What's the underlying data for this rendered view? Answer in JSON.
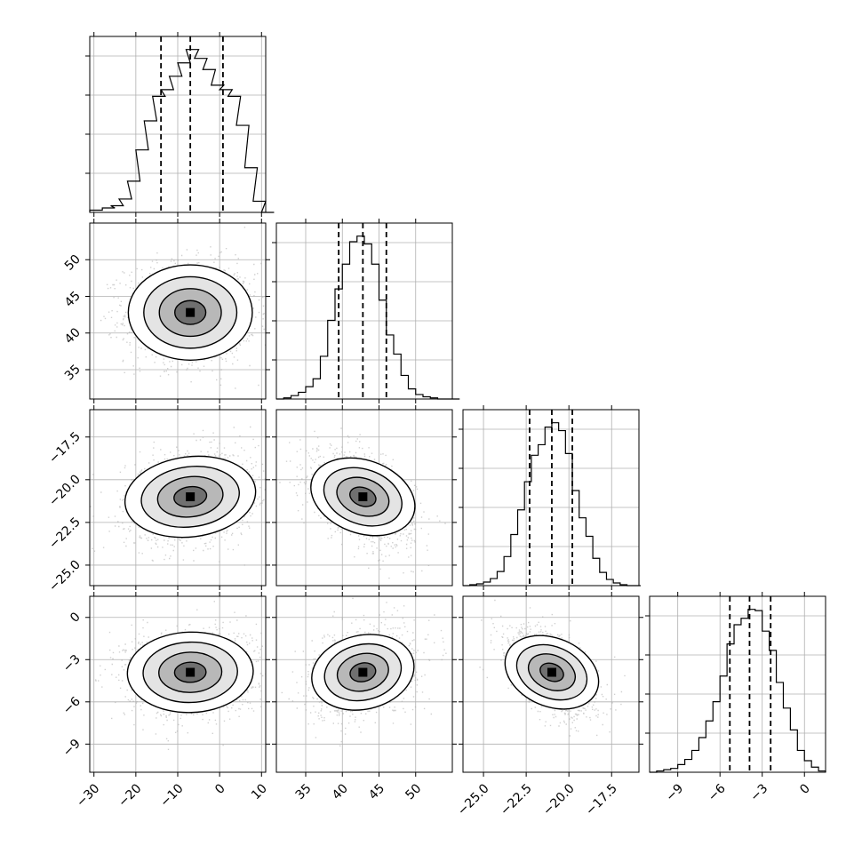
{
  "chart_data": [
    {
      "type": "corner",
      "parameters": [
        {
          "ticks": [
            -30,
            -20,
            -10,
            0,
            10
          ],
          "tick_labels": [
            "−30",
            "−20",
            "−10",
            "0",
            "10"
          ],
          "range": [
            -31,
            11
          ]
        },
        {
          "ticks": [
            35,
            40,
            45,
            50
          ],
          "tick_labels": [
            "35",
            "40",
            "45",
            "50"
          ],
          "range": [
            31,
            55
          ]
        },
        {
          "ticks": [
            -25.0,
            -22.5,
            -20.0,
            -17.5
          ],
          "tick_labels": [
            "−25.0",
            "−22.5",
            "−20.0",
            "−17.5"
          ],
          "range": [
            -26.2,
            -15.9
          ]
        },
        {
          "ticks": [
            -9,
            -6,
            -3,
            0
          ],
          "tick_labels": [
            "−9",
            "−6",
            "−3",
            "0"
          ],
          "range": [
            -11,
            1.5
          ]
        }
      ],
      "marginals": [
        {
          "quantiles": [
            -14.0,
            -7.0,
            0.8
          ],
          "x": [
            -31,
            -28,
            -26,
            -24,
            -22,
            -20,
            -18,
            -16,
            -14,
            -12,
            -10,
            -8,
            -6,
            -4,
            -2,
            0,
            2,
            4,
            6,
            8,
            10
          ],
          "y": [
            1,
            2,
            3,
            6,
            14,
            28,
            41,
            52,
            55,
            61,
            67,
            73,
            69,
            64,
            57,
            55,
            52,
            39,
            20,
            5,
            0
          ]
        },
        {
          "quantiles": [
            39.5,
            42.8,
            46.0
          ],
          "x": [
            31,
            32,
            33,
            34,
            35,
            36,
            37,
            38,
            39,
            40,
            41,
            42,
            43,
            44,
            45,
            46,
            47,
            48,
            49,
            50,
            51,
            52,
            53,
            54,
            55
          ],
          "y": [
            0,
            1,
            3,
            6,
            11,
            18,
            38,
            70,
            98,
            120,
            140,
            145,
            138,
            120,
            88,
            57,
            40,
            21,
            9,
            4,
            2,
            1,
            0,
            0,
            0
          ]
        },
        {
          "quantiles": [
            -22.3,
            -21.0,
            -19.8
          ],
          "x": [
            -26.2,
            -25.8,
            -25.4,
            -25.0,
            -24.6,
            -24.2,
            -23.8,
            -23.4,
            -23.0,
            -22.6,
            -22.2,
            -21.8,
            -21.4,
            -21.0,
            -20.6,
            -20.2,
            -19.8,
            -19.4,
            -19.0,
            -18.6,
            -18.2,
            -17.8,
            -17.4,
            -17.0,
            -16.6,
            -16.2
          ],
          "y": [
            0,
            1,
            2,
            4,
            8,
            16,
            33,
            58,
            86,
            118,
            148,
            160,
            180,
            185,
            176,
            150,
            108,
            77,
            56,
            31,
            15,
            7,
            3,
            1,
            0,
            0
          ]
        },
        {
          "quantiles": [
            -5.3,
            -3.9,
            -2.4
          ],
          "x": [
            -11,
            -10.5,
            -10,
            -9.5,
            -9,
            -8.5,
            -8,
            -7.5,
            -7,
            -6.5,
            -6,
            -5.5,
            -5,
            -4.5,
            -4,
            -3.5,
            -3,
            -2.5,
            -2,
            -1.5,
            -1,
            -0.5,
            0,
            0.5,
            1
          ],
          "y": [
            0,
            1,
            2,
            3,
            6,
            10,
            17,
            27,
            40,
            55,
            75,
            100,
            115,
            120,
            127,
            126,
            110,
            95,
            70,
            50,
            33,
            17,
            9,
            4,
            1
          ]
        }
      ]
    }
  ]
}
